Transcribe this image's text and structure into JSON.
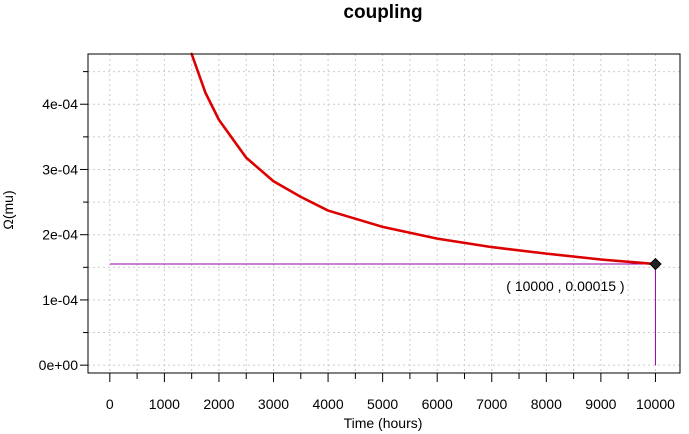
{
  "chart_data": {
    "type": "line",
    "title": "coupling",
    "xlabel": "Time (hours)",
    "ylabel": "Ω(mu)",
    "xlim": [
      -400,
      10450
    ],
    "ylim": [
      -1.2e-05,
      0.000477
    ],
    "grid": true,
    "x_ticks": [
      0,
      1000,
      2000,
      3000,
      4000,
      5000,
      6000,
      7000,
      8000,
      9000,
      10000
    ],
    "x_tick_labels": [
      "0",
      "1000",
      "2000",
      "3000",
      "4000",
      "5000",
      "6000",
      "7000",
      "8000",
      "9000",
      "10000"
    ],
    "y_ticks": [
      0,
      0.0001,
      0.0002,
      0.0003,
      0.0004
    ],
    "y_tick_labels": [
      "0e+00",
      "1e-04",
      "2e-04",
      "3e-04",
      "4e-04"
    ],
    "series": [
      {
        "color": "#dd0000",
        "x": [
          1500,
          1750,
          2000,
          2500,
          3000,
          3500,
          4000,
          5000,
          6000,
          7000,
          8000,
          9000,
          10000
        ],
        "y": [
          0.000477,
          0.000418,
          0.000376,
          0.000318,
          0.000282,
          0.000258,
          0.000237,
          0.000212,
          0.000194,
          0.000181,
          0.000171,
          0.000162,
          0.000155
        ]
      }
    ],
    "highlight_point": {
      "x": 10000,
      "y": 0.000155,
      "label": "( 10000 , 0.00015 )",
      "marker_color": "#222222",
      "guide_color": "#9900aa"
    }
  }
}
